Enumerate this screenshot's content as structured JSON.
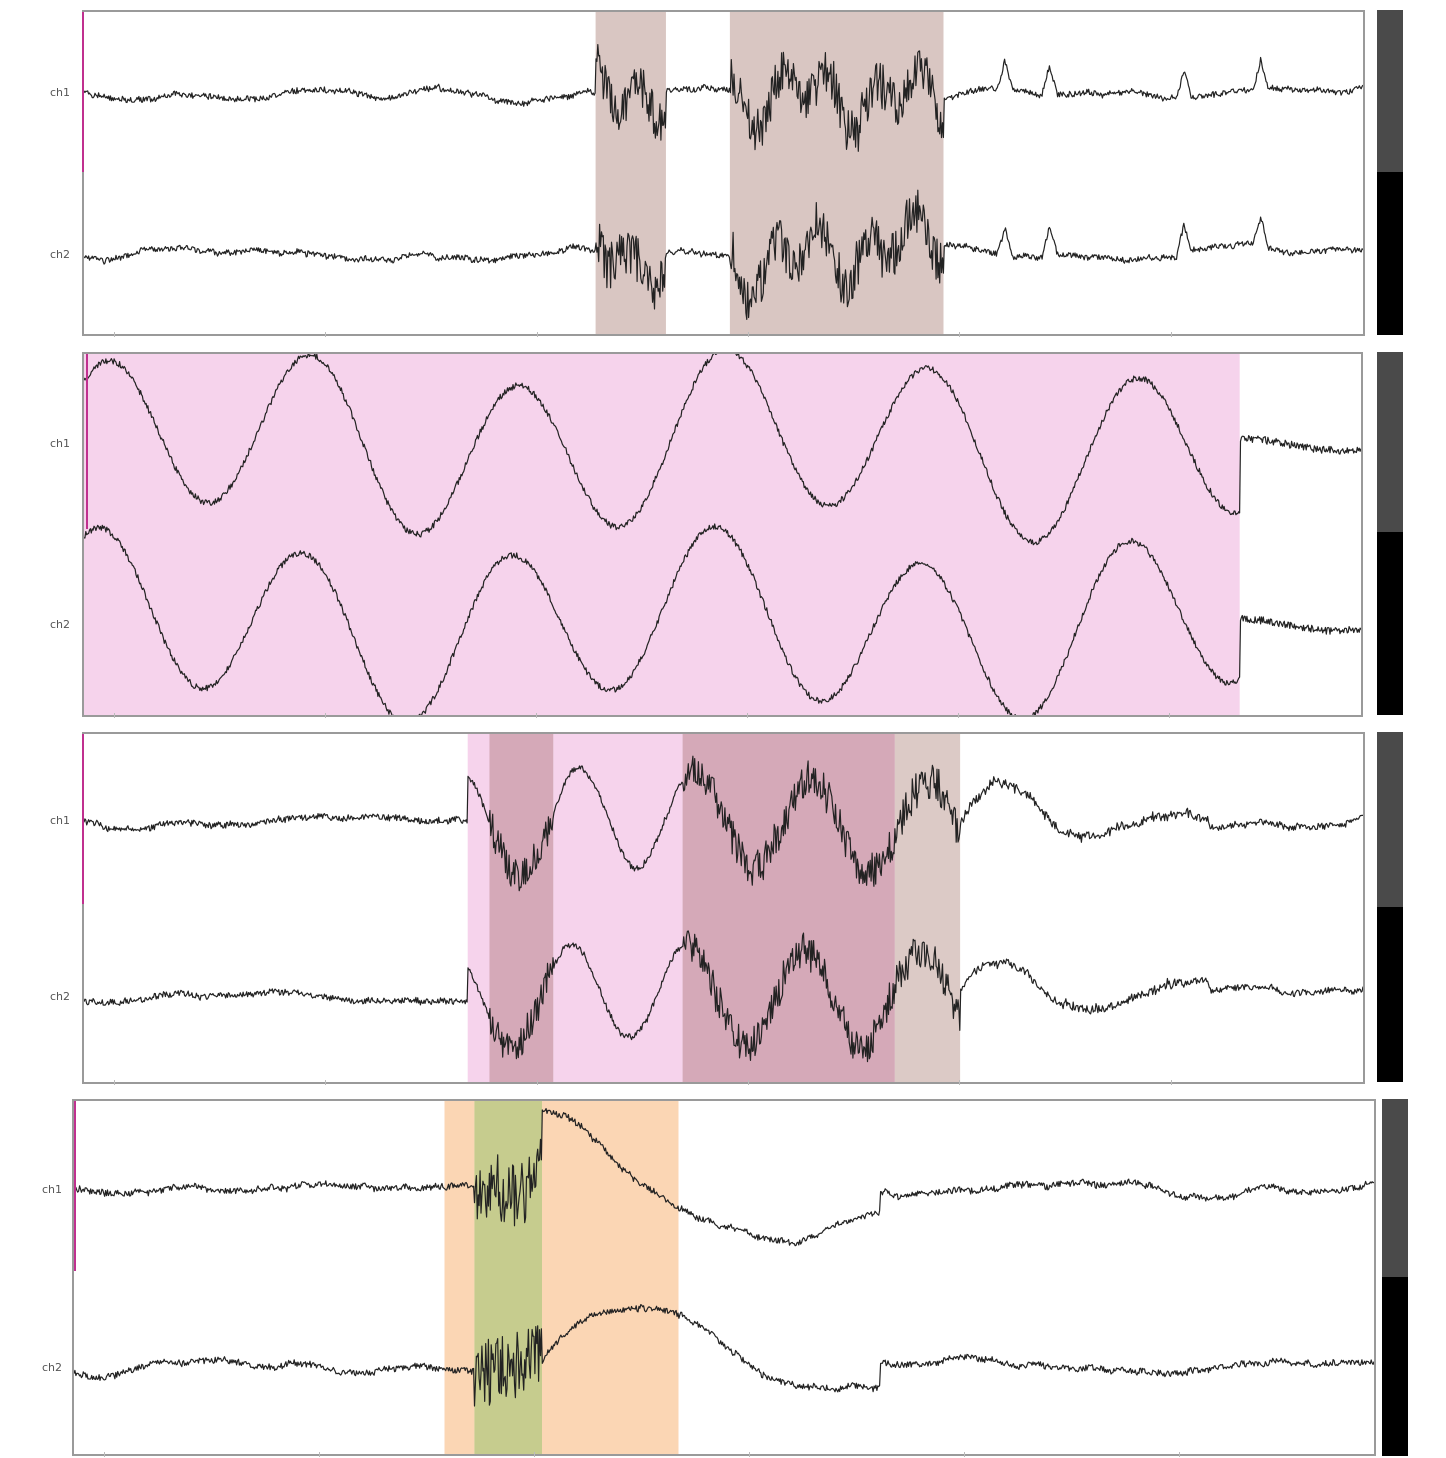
{
  "chart_data": [
    {
      "type": "line",
      "title": "",
      "xlabel": "",
      "ylabel": "",
      "channels": [
        "ch1",
        "ch2"
      ],
      "scale_label": "",
      "grid": false,
      "style": "noise-baseline",
      "seed": 11,
      "highlights": [
        {
          "start": 0.4,
          "end": 0.455,
          "color": "#d9c6c2",
          "activity": "burst"
        },
        {
          "start": 0.505,
          "end": 0.672,
          "color": "#d9c6c2",
          "activity": "burst"
        }
      ],
      "spikes": [
        0.72,
        0.755,
        0.86,
        0.92
      ]
    },
    {
      "type": "line",
      "title": "",
      "xlabel": "",
      "ylabel": "",
      "channels": [
        "ch1",
        "ch2"
      ],
      "scale_label": "",
      "grid": false,
      "style": "slow-wave",
      "seed": 23,
      "highlights": [
        {
          "start": 0.0,
          "end": 0.905,
          "color": "#f6d3ec",
          "activity": "slow"
        }
      ],
      "spikes": []
    },
    {
      "type": "line",
      "title": "",
      "xlabel": "",
      "ylabel": "",
      "channels": [
        "ch1",
        "ch2"
      ],
      "scale_label": "",
      "grid": false,
      "style": "onset",
      "seed": 37,
      "highlights": [
        {
          "start": 0.3,
          "end": 0.317,
          "color": "#f6d3ec",
          "activity": "slow"
        },
        {
          "start": 0.317,
          "end": 0.367,
          "color": "#d5a9b8",
          "activity": "burst"
        },
        {
          "start": 0.367,
          "end": 0.468,
          "color": "#f6d3ec",
          "activity": "slow"
        },
        {
          "start": 0.468,
          "end": 0.634,
          "color": "#d5a9b8",
          "activity": "burst"
        },
        {
          "start": 0.634,
          "end": 0.685,
          "color": "#dccac6",
          "activity": "burst"
        }
      ],
      "spikes": []
    },
    {
      "type": "line",
      "title": "",
      "xlabel": "",
      "ylabel": "",
      "channels": [
        "ch1",
        "ch2"
      ],
      "scale_label": "",
      "grid": false,
      "style": "artifact",
      "seed": 53,
      "highlights": [
        {
          "start": 0.285,
          "end": 0.308,
          "color": "#fbd6b4",
          "activity": "slow"
        },
        {
          "start": 0.308,
          "end": 0.36,
          "color": "#c6cc8e",
          "activity": "burst"
        },
        {
          "start": 0.36,
          "end": 0.465,
          "color": "#fbd6b4",
          "activity": "artifact"
        }
      ],
      "spikes": []
    }
  ]
}
